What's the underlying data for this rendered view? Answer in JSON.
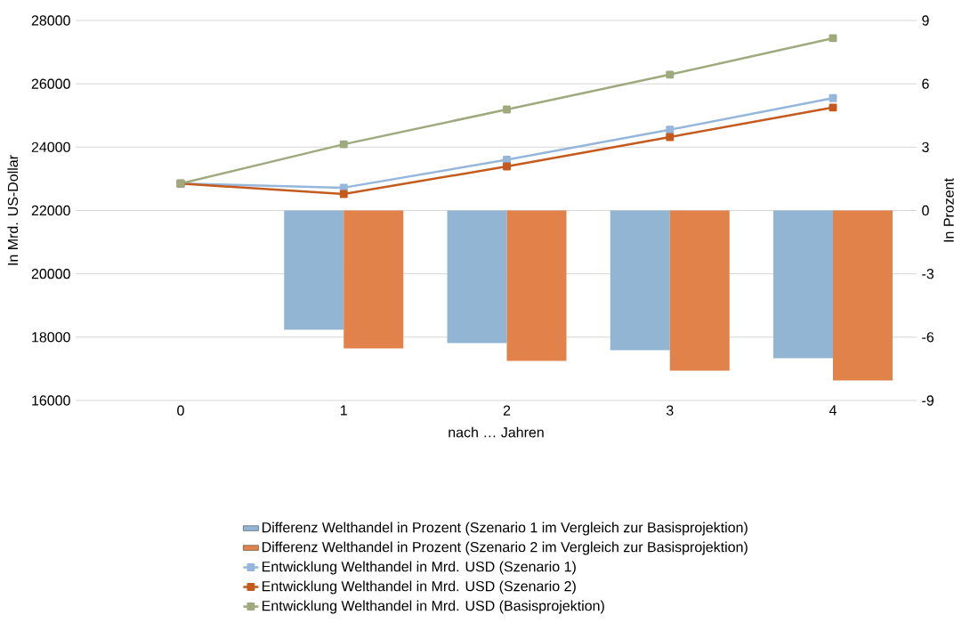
{
  "chart_data": {
    "type": "line",
    "xlabel": "nach … Jahren",
    "ylabel": "In Mrd. US-Dollar",
    "y2label": "In Prozent",
    "categories": [
      "0",
      "1",
      "2",
      "3",
      "4"
    ],
    "ylim": [
      16000,
      28000
    ],
    "yticks": [
      16000,
      18000,
      20000,
      22000,
      24000,
      26000,
      28000
    ],
    "y2lim": [
      -9,
      9
    ],
    "y2ticks": [
      -9,
      -6,
      -3,
      0,
      3,
      6,
      9
    ],
    "grid": "y",
    "legend": "bottom",
    "marker": "square",
    "line_style": "solid",
    "series": [
      {
        "type": "bar",
        "axis": "y2",
        "name": "Differenz Welthandel in Prozent (Szenario 1 im Vergleich zur Basisprojektion)",
        "color": "#93b5d4",
        "values": [
          null,
          -5.65,
          -6.28,
          -6.62,
          -7.0
        ]
      },
      {
        "type": "bar",
        "axis": "y2",
        "name": "Differenz Welthandel in Prozent (Szenario 2 im Vergleich zur Basisprojektion)",
        "color": "#e0824a",
        "values": [
          null,
          -6.53,
          -7.12,
          -7.59,
          -8.05
        ]
      },
      {
        "name": "Entwicklung Welthandel in Mrd. USD (Szenario 1)",
        "color": "#95b7db",
        "values": [
          22850,
          22720,
          23600,
          24550,
          25550
        ]
      },
      {
        "name": "Entwicklung Welthandel in Mrd. USD (Szenario 2)",
        "color": "#c55a1f",
        "values": [
          22850,
          22520,
          23390,
          24320,
          25250
        ]
      },
      {
        "name": "Entwicklung Welthandel in Mrd. USD (Basisprojektion)",
        "color": "#9eaa7e",
        "values": [
          22850,
          24090,
          25190,
          26290,
          27440
        ]
      }
    ]
  }
}
